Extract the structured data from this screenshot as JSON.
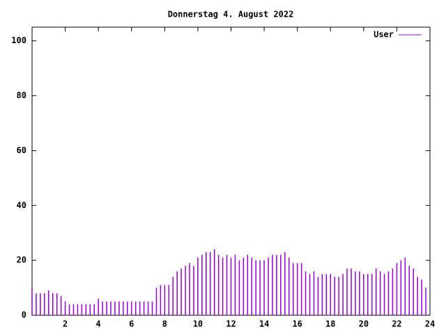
{
  "chart_data": {
    "type": "impulse",
    "title": "Donnerstag 4. August 2022",
    "x": [
      0,
      0.25,
      0.5,
      0.75,
      1,
      1.25,
      1.5,
      1.75,
      2,
      2.25,
      2.5,
      2.75,
      3,
      3.25,
      3.5,
      3.75,
      4,
      4.25,
      4.5,
      4.75,
      5,
      5.25,
      5.5,
      5.75,
      6,
      6.25,
      6.5,
      6.75,
      7,
      7.25,
      7.5,
      7.75,
      8,
      8.25,
      8.5,
      8.75,
      9,
      9.25,
      9.5,
      9.75,
      10,
      10.25,
      10.5,
      10.75,
      11,
      11.25,
      11.5,
      11.75,
      12,
      12.25,
      12.5,
      12.75,
      13,
      13.25,
      13.5,
      13.75,
      14,
      14.25,
      14.5,
      14.75,
      15,
      15.25,
      15.5,
      15.75,
      16,
      16.25,
      16.5,
      16.75,
      17,
      17.25,
      17.5,
      17.75,
      18,
      18.25,
      18.5,
      18.75,
      19,
      19.25,
      19.5,
      19.75,
      20,
      20.25,
      20.5,
      20.75,
      21,
      21.25,
      21.5,
      21.75,
      22,
      22.25,
      22.5,
      22.75,
      23,
      23.25,
      23.5,
      23.75
    ],
    "series": [
      {
        "name": "User",
        "color": "#9400d3",
        "values": [
          10,
          8,
          8,
          8,
          9,
          8,
          8,
          7,
          5,
          4,
          4,
          4,
          4,
          4,
          4,
          4,
          6,
          5,
          5,
          5,
          5,
          5,
          5,
          5,
          5,
          5,
          5,
          5,
          5,
          5,
          10,
          11,
          11,
          11,
          14,
          16,
          17,
          18,
          19,
          18,
          21,
          22,
          23,
          23,
          24,
          22,
          21,
          22,
          21,
          22,
          20,
          21,
          22,
          21,
          20,
          20,
          20,
          21,
          22,
          22,
          22,
          23,
          21,
          19,
          19,
          19,
          16,
          15,
          16,
          14,
          15,
          15,
          15,
          14,
          14,
          15,
          17,
          17,
          16,
          16,
          15,
          15,
          15,
          17,
          16,
          15,
          16,
          17,
          19,
          20,
          21,
          18,
          17,
          14,
          13,
          10
        ]
      }
    ],
    "xlim": [
      0,
      24
    ],
    "ylim": [
      0,
      105
    ],
    "xticks": [
      2,
      4,
      6,
      8,
      10,
      12,
      14,
      16,
      18,
      20,
      22,
      24
    ],
    "yticks": [
      0,
      20,
      40,
      60,
      80,
      100
    ],
    "legend": "top-right"
  }
}
